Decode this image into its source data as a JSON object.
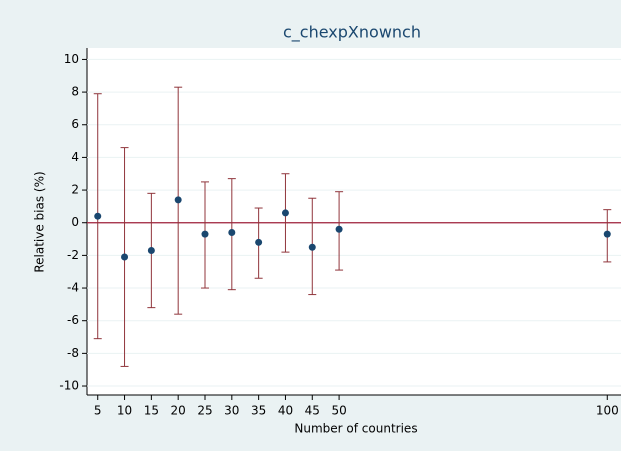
{
  "chart_data": {
    "type": "errorbar",
    "title": "c_chexpXnownch",
    "x_label": "Number of countries",
    "y_label": "Relative bias (%)",
    "x": [
      5,
      10,
      15,
      20,
      25,
      30,
      35,
      40,
      45,
      50,
      100
    ],
    "values": [
      0.4,
      -2.1,
      -1.7,
      1.4,
      -0.7,
      -0.6,
      -1.2,
      0.6,
      -1.5,
      -0.4,
      -0.7
    ],
    "lower": [
      -7.1,
      -8.8,
      -5.2,
      -5.6,
      -4.0,
      -4.1,
      -3.4,
      -1.8,
      -4.4,
      -2.9,
      -2.4
    ],
    "upper": [
      7.9,
      4.6,
      1.8,
      8.3,
      2.5,
      2.7,
      0.9,
      3.0,
      1.5,
      1.9,
      0.8
    ],
    "color": "#1a476f",
    "errorbar_color": "#90353b",
    "reference_line": {
      "value": 0,
      "color": "#a0203a"
    },
    "xlim": [
      3,
      102
    ],
    "ylim": [
      -10.55,
      10.7
    ],
    "xticks": [
      5,
      10,
      15,
      20,
      25,
      30,
      35,
      40,
      45,
      50,
      100
    ],
    "yticks": [
      -10,
      -8,
      -6,
      -4,
      -2,
      0,
      2,
      4,
      6,
      8,
      10
    ],
    "grid": true
  }
}
